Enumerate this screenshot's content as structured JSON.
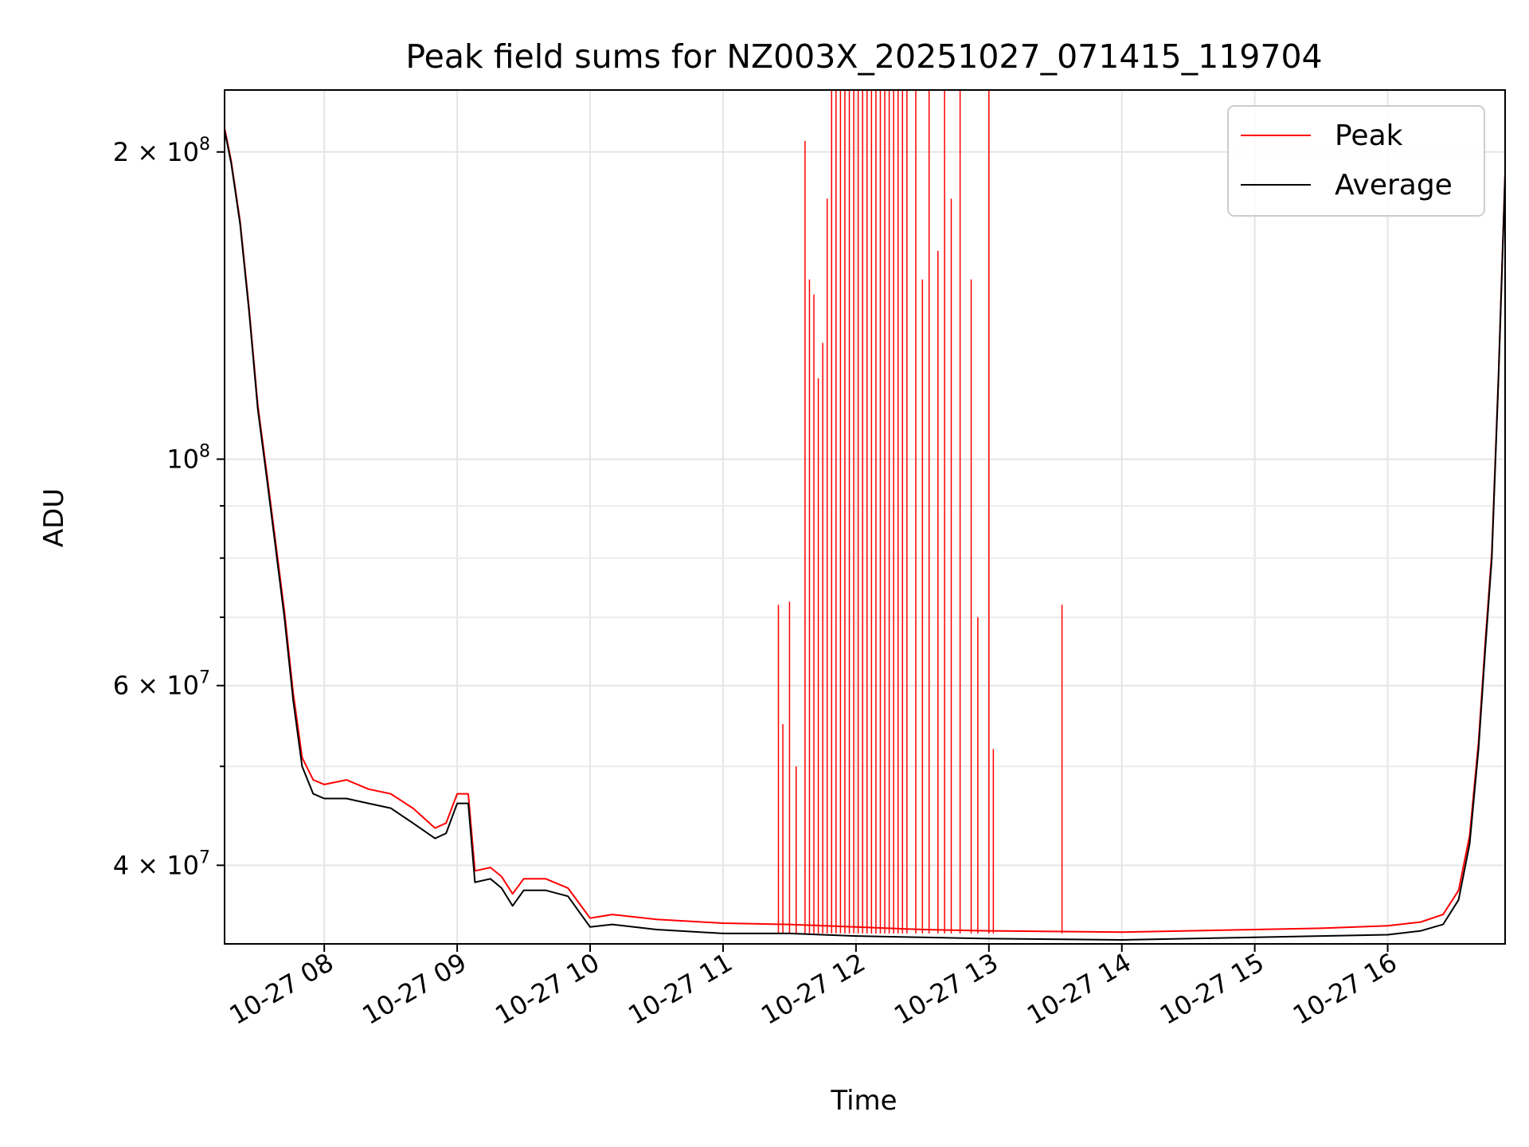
{
  "chart_data": {
    "type": "line",
    "title": "Peak field sums for NZ003X_20251027_071415_119704",
    "xlabel": "Time",
    "ylabel": "ADU",
    "yscale": "log",
    "xlim": [
      "2025-10-27 07:15",
      "2025-10-27 16:53"
    ],
    "ylim": [
      33500000,
      230000000
    ],
    "grid": true,
    "legend": {
      "placement": "top-right",
      "entries": [
        "Peak",
        "Average"
      ]
    },
    "colors": {
      "Peak": "#ff0000",
      "Average": "#000000"
    },
    "x_ticks": [
      "10-27 08",
      "10-27 09",
      "10-27 10",
      "10-27 11",
      "10-27 12",
      "10-27 13",
      "10-27 14",
      "10-27 15",
      "10-27 16"
    ],
    "x_tick_times": [
      "2025-10-27 08:00",
      "2025-10-27 09:00",
      "2025-10-27 10:00",
      "2025-10-27 11:00",
      "2025-10-27 12:00",
      "2025-10-27 13:00",
      "2025-10-27 14:00",
      "2025-10-27 15:00",
      "2025-10-27 16:00"
    ],
    "y_ticks": [
      {
        "value": 200000000,
        "base": "2 × 10",
        "exp": "8"
      },
      {
        "value": 100000000,
        "base": "10",
        "exp": "8"
      },
      {
        "value": 60000000,
        "base": "6 × 10",
        "exp": "7"
      },
      {
        "value": 40000000,
        "base": "4 × 10",
        "exp": "7"
      }
    ],
    "y_minor_ticks": [
      90000000,
      80000000,
      70000000,
      50000000
    ],
    "series": [
      {
        "name": "Average",
        "color": "#000000",
        "x": [
          "2025-10-27 07:15",
          "2025-10-27 07:18",
          "2025-10-27 07:22",
          "2025-10-27 07:26",
          "2025-10-27 07:30",
          "2025-10-27 07:34",
          "2025-10-27 07:38",
          "2025-10-27 07:42",
          "2025-10-27 07:46",
          "2025-10-27 07:50",
          "2025-10-27 07:55",
          "2025-10-27 08:00",
          "2025-10-27 08:10",
          "2025-10-27 08:20",
          "2025-10-27 08:30",
          "2025-10-27 08:40",
          "2025-10-27 08:50",
          "2025-10-27 08:55",
          "2025-10-27 09:00",
          "2025-10-27 09:05",
          "2025-10-27 09:08",
          "2025-10-27 09:15",
          "2025-10-27 09:20",
          "2025-10-27 09:25",
          "2025-10-27 09:30",
          "2025-10-27 09:40",
          "2025-10-27 09:50",
          "2025-10-27 10:00",
          "2025-10-27 10:10",
          "2025-10-27 10:30",
          "2025-10-27 11:00",
          "2025-10-27 11:30",
          "2025-10-27 12:00",
          "2025-10-27 12:30",
          "2025-10-27 13:00",
          "2025-10-27 14:00",
          "2025-10-27 15:00",
          "2025-10-27 15:30",
          "2025-10-27 16:00",
          "2025-10-27 16:15",
          "2025-10-27 16:25",
          "2025-10-27 16:32",
          "2025-10-27 16:37",
          "2025-10-27 16:41",
          "2025-10-27 16:44",
          "2025-10-27 16:47",
          "2025-10-27 16:50",
          "2025-10-27 16:53"
        ],
        "values": [
          210000000,
          195000000,
          170000000,
          140000000,
          112000000,
          96000000,
          82000000,
          70000000,
          58000000,
          50000000,
          47000000,
          46500000,
          46500000,
          46000000,
          45500000,
          44000000,
          42500000,
          43000000,
          46000000,
          46000000,
          38500000,
          38800000,
          38000000,
          36500000,
          37800000,
          37800000,
          37300000,
          34800000,
          35000000,
          34600000,
          34300000,
          34300000,
          34100000,
          34000000,
          33900000,
          33800000,
          34000000,
          34100000,
          34200000,
          34500000,
          35000000,
          37000000,
          42000000,
          52000000,
          65000000,
          80000000,
          120000000,
          190000000
        ]
      },
      {
        "name": "Peak",
        "color": "#ff0000",
        "x": [
          "2025-10-27 07:15",
          "2025-10-27 07:18",
          "2025-10-27 07:22",
          "2025-10-27 07:26",
          "2025-10-27 07:30",
          "2025-10-27 07:34",
          "2025-10-27 07:38",
          "2025-10-27 07:42",
          "2025-10-27 07:46",
          "2025-10-27 07:50",
          "2025-10-27 07:55",
          "2025-10-27 08:00",
          "2025-10-27 08:10",
          "2025-10-27 08:20",
          "2025-10-27 08:30",
          "2025-10-27 08:40",
          "2025-10-27 08:50",
          "2025-10-27 08:55",
          "2025-10-27 09:00",
          "2025-10-27 09:05",
          "2025-10-27 09:08",
          "2025-10-27 09:15",
          "2025-10-27 09:20",
          "2025-10-27 09:25",
          "2025-10-27 09:30",
          "2025-10-27 09:40",
          "2025-10-27 09:50",
          "2025-10-27 10:00",
          "2025-10-27 10:10",
          "2025-10-27 10:30",
          "2025-10-27 11:00",
          "2025-10-27 11:30",
          "2025-10-27 12:00",
          "2025-10-27 12:30",
          "2025-10-27 13:00",
          "2025-10-27 14:00",
          "2025-10-27 15:00",
          "2025-10-27 15:30",
          "2025-10-27 16:00",
          "2025-10-27 16:15",
          "2025-10-27 16:25",
          "2025-10-27 16:32",
          "2025-10-27 16:37",
          "2025-10-27 16:41",
          "2025-10-27 16:44",
          "2025-10-27 16:47",
          "2025-10-27 16:50",
          "2025-10-27 16:53"
        ],
        "values": [
          211000000,
          196000000,
          171000000,
          141000000,
          113000000,
          97000000,
          83000000,
          71000000,
          59000000,
          51000000,
          48500000,
          48000000,
          48500000,
          47500000,
          47000000,
          45500000,
          43500000,
          44000000,
          47000000,
          47000000,
          39500000,
          39800000,
          39000000,
          37500000,
          38800000,
          38800000,
          38000000,
          35500000,
          35800000,
          35400000,
          35100000,
          35000000,
          34800000,
          34600000,
          34500000,
          34400000,
          34600000,
          34700000,
          34900000,
          35200000,
          35800000,
          37800000,
          42800000,
          52800000,
          66000000,
          81000000,
          121000000,
          191000000
        ],
        "spikes": [
          {
            "x": "2025-10-27 11:25",
            "value": 72000000
          },
          {
            "x": "2025-10-27 11:27",
            "value": 55000000
          },
          {
            "x": "2025-10-27 11:30",
            "value": 72500000
          },
          {
            "x": "2025-10-27 11:33",
            "value": 50000000
          },
          {
            "x": "2025-10-27 11:37",
            "value": 205000000
          },
          {
            "x": "2025-10-27 11:39",
            "value": 150000000
          },
          {
            "x": "2025-10-27 11:41",
            "value": 145000000
          },
          {
            "x": "2025-10-27 11:43",
            "value": 120000000
          },
          {
            "x": "2025-10-27 11:45",
            "value": 130000000
          },
          {
            "x": "2025-10-27 11:47",
            "value": 180000000
          },
          {
            "x": "2025-10-27 11:49",
            "value": 230000000
          },
          {
            "x": "2025-10-27 11:51",
            "value": 230000000
          },
          {
            "x": "2025-10-27 11:53",
            "value": 230000000
          },
          {
            "x": "2025-10-27 11:55",
            "value": 230000000
          },
          {
            "x": "2025-10-27 11:57",
            "value": 230000000
          },
          {
            "x": "2025-10-27 11:59",
            "value": 230000000
          },
          {
            "x": "2025-10-27 12:01",
            "value": 230000000
          },
          {
            "x": "2025-10-27 12:03",
            "value": 230000000
          },
          {
            "x": "2025-10-27 12:05",
            "value": 230000000
          },
          {
            "x": "2025-10-27 12:07",
            "value": 230000000
          },
          {
            "x": "2025-10-27 12:09",
            "value": 230000000
          },
          {
            "x": "2025-10-27 12:11",
            "value": 230000000
          },
          {
            "x": "2025-10-27 12:13",
            "value": 230000000
          },
          {
            "x": "2025-10-27 12:15",
            "value": 230000000
          },
          {
            "x": "2025-10-27 12:17",
            "value": 230000000
          },
          {
            "x": "2025-10-27 12:19",
            "value": 230000000
          },
          {
            "x": "2025-10-27 12:21",
            "value": 230000000
          },
          {
            "x": "2025-10-27 12:23",
            "value": 230000000
          },
          {
            "x": "2025-10-27 12:27",
            "value": 230000000
          },
          {
            "x": "2025-10-27 12:30",
            "value": 150000000
          },
          {
            "x": "2025-10-27 12:33",
            "value": 230000000
          },
          {
            "x": "2025-10-27 12:37",
            "value": 160000000
          },
          {
            "x": "2025-10-27 12:40",
            "value": 230000000
          },
          {
            "x": "2025-10-27 12:43",
            "value": 180000000
          },
          {
            "x": "2025-10-27 12:47",
            "value": 230000000
          },
          {
            "x": "2025-10-27 12:52",
            "value": 150000000
          },
          {
            "x": "2025-10-27 12:55",
            "value": 70000000
          },
          {
            "x": "2025-10-27 13:00",
            "value": 230000000
          },
          {
            "x": "2025-10-27 13:02",
            "value": 52000000
          },
          {
            "x": "2025-10-27 13:33",
            "value": 72000000
          }
        ]
      }
    ]
  }
}
